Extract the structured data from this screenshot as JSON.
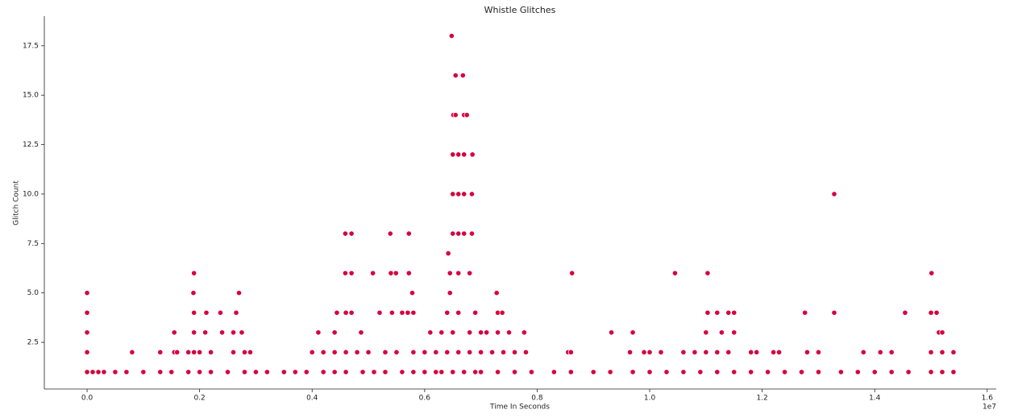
{
  "chart_data": {
    "type": "scatter",
    "title": "Whistle Glitches",
    "x_label": "Time In Seconds",
    "y_label": "Glitch Count",
    "x_offset_label": "1e7",
    "color": "#d6003e",
    "x": [
      0.0,
      0.01,
      0.02,
      0.03,
      0.05,
      0.07,
      0.1,
      0.13,
      0.15,
      0.18,
      0.2,
      0.22,
      0.25,
      0.28,
      0.3,
      0.32,
      0.35,
      0.37,
      0.39,
      0.42,
      0.44,
      0.46,
      0.49,
      0.51,
      0.53,
      0.56,
      0.58,
      0.6,
      0.62,
      0.63,
      0.65,
      0.67,
      0.69,
      0.7,
      0.73,
      0.76,
      0.79,
      0.83,
      0.86,
      0.9,
      0.93,
      0.97,
      1.0,
      1.03,
      1.06,
      1.09,
      1.12,
      1.15,
      1.18,
      1.21,
      1.24,
      1.27,
      1.3,
      1.34,
      1.37,
      1.4,
      1.43,
      1.46,
      1.5,
      1.52,
      1.54,
      0.0,
      0.08,
      0.13,
      0.155,
      0.16,
      0.18,
      0.19,
      0.2,
      0.22,
      0.26,
      0.28,
      0.29,
      0.4,
      0.42,
      0.44,
      0.46,
      0.48,
      0.5,
      0.53,
      0.55,
      0.58,
      0.6,
      0.62,
      0.64,
      0.66,
      0.68,
      0.7,
      0.72,
      0.74,
      0.76,
      0.78,
      0.855,
      0.86,
      0.965,
      0.99,
      1.0,
      1.02,
      1.06,
      1.08,
      1.1,
      1.12,
      1.14,
      1.18,
      1.19,
      1.22,
      1.23,
      1.28,
      1.3,
      1.38,
      1.41,
      1.43,
      1.5,
      1.52,
      1.54,
      0.0,
      0.155,
      0.19,
      0.21,
      0.24,
      0.26,
      0.275,
      0.411,
      0.44,
      0.487,
      0.61,
      0.63,
      0.65,
      0.68,
      0.7,
      0.71,
      0.73,
      0.75,
      0.777,
      0.932,
      0.97,
      1.1,
      1.128,
      1.15,
      1.514,
      1.52,
      0.0,
      0.19,
      0.212,
      0.237,
      0.265,
      0.444,
      0.46,
      0.47,
      0.52,
      0.542,
      0.56,
      0.57,
      0.58,
      0.64,
      0.66,
      0.69,
      0.73,
      0.738,
      1.103,
      1.12,
      1.14,
      1.15,
      1.276,
      1.328,
      1.454,
      1.5,
      1.51,
      0.0,
      0.189,
      0.27,
      0.578,
      0.645,
      0.728,
      0.19,
      0.459,
      0.47,
      0.508,
      0.54,
      0.549,
      0.572,
      0.645,
      0.66,
      0.68,
      0.862,
      1.045,
      1.103,
      1.501,
      0.642,
      0.459,
      0.47,
      0.539,
      0.572,
      0.65,
      0.66,
      0.67,
      0.684,
      0.65,
      0.66,
      0.67,
      0.684,
      1.328,
      0.65,
      0.66,
      0.67,
      0.685,
      0.651,
      0.655,
      0.67,
      0.675,
      0.655,
      0.668,
      0.648
    ],
    "values": [
      1,
      1,
      1,
      1,
      1,
      1,
      1,
      1,
      1,
      1,
      1,
      1,
      1,
      1,
      1,
      1,
      1,
      1,
      1,
      1,
      1,
      1,
      1,
      1,
      1,
      1,
      1,
      1,
      1,
      1,
      1,
      1,
      1,
      1,
      1,
      1,
      1,
      1,
      1,
      1,
      1,
      1,
      1,
      1,
      1,
      1,
      1,
      1,
      1,
      1,
      1,
      1,
      1,
      1,
      1,
      1,
      1,
      1,
      1,
      1,
      1,
      2,
      2,
      2,
      2,
      2,
      2,
      2,
      2,
      2,
      2,
      2,
      2,
      2,
      2,
      2,
      2,
      2,
      2,
      2,
      2,
      2,
      2,
      2,
      2,
      2,
      2,
      2,
      2,
      2,
      2,
      2,
      2,
      2,
      2,
      2,
      2,
      2,
      2,
      2,
      2,
      2,
      2,
      2,
      2,
      2,
      2,
      2,
      2,
      2,
      2,
      2,
      2,
      2,
      2,
      3,
      3,
      3,
      3,
      3,
      3,
      3,
      3,
      3,
      3,
      3,
      3,
      3,
      3,
      3,
      3,
      3,
      3,
      3,
      3,
      3,
      3,
      3,
      3,
      3,
      3,
      4,
      4,
      4,
      4,
      4,
      4,
      4,
      4,
      4,
      4,
      4,
      4,
      4,
      4,
      4,
      4,
      4,
      4,
      4,
      4,
      4,
      4,
      4,
      4,
      4,
      4,
      4,
      5,
      5,
      5,
      5,
      5,
      5,
      6,
      6,
      6,
      6,
      6,
      6,
      6,
      6,
      6,
      6,
      6,
      6,
      6,
      6,
      7,
      8,
      8,
      8,
      8,
      8,
      8,
      8,
      8,
      10,
      10,
      10,
      10,
      10,
      12,
      12,
      12,
      12,
      14,
      14,
      14,
      14,
      16,
      16,
      18
    ],
    "xlim": [
      -0.076,
      1.616
    ],
    "ylim": [
      0.14,
      19.0
    ],
    "xticks": [
      {
        "value": 0,
        "label": "0.0"
      },
      0.2,
      0.4,
      0.6,
      0.8,
      {
        "value": 1,
        "label": "1.0"
      },
      1.2,
      1.4,
      1.6
    ],
    "yticks": [
      2.5,
      {
        "value": 5,
        "label": "5.0"
      },
      7.5,
      {
        "value": 10,
        "label": "10.0"
      },
      12.5,
      {
        "value": 15,
        "label": "15.0"
      },
      17.5
    ]
  }
}
